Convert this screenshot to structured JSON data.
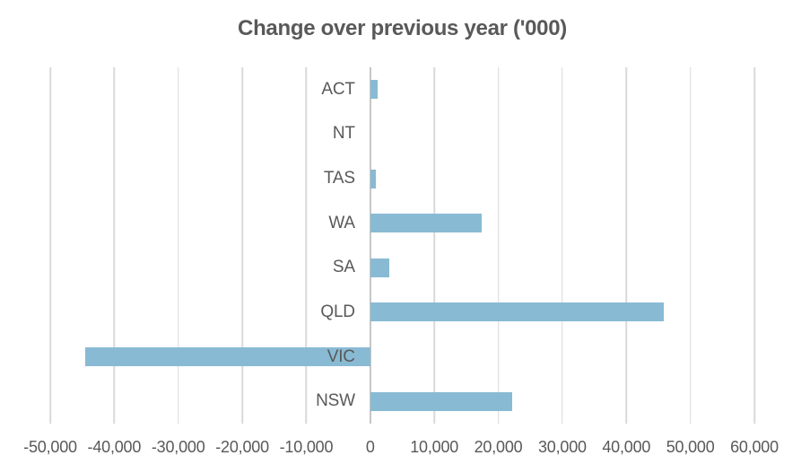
{
  "chart_data": {
    "type": "bar",
    "orientation": "horizontal",
    "title": "Change over previous year ('000)",
    "xlabel": "",
    "ylabel": "",
    "xlim": [
      -50000,
      60000
    ],
    "grid": true,
    "gridlines": "vertical",
    "legend": "none",
    "categories_top_to_bottom": [
      "ACT",
      "NT",
      "TAS",
      "WA",
      "SA",
      "QLD",
      "VIC",
      "NSW"
    ],
    "rows": [
      {
        "label": "ACT",
        "value": 1100
      },
      {
        "label": "NT",
        "value": 0
      },
      {
        "label": "TAS",
        "value": 900
      },
      {
        "label": "WA",
        "value": 17400
      },
      {
        "label": "SA",
        "value": 2900
      },
      {
        "label": "QLD",
        "value": 45900
      },
      {
        "label": "VIC",
        "value": -44500
      },
      {
        "label": "NSW",
        "value": 22100
      }
    ],
    "x_ticks": [
      {
        "value": -50000,
        "label": "-50,000"
      },
      {
        "value": -40000,
        "label": "-40,000"
      },
      {
        "value": -30000,
        "label": "-30,000"
      },
      {
        "value": -20000,
        "label": "-20,000"
      },
      {
        "value": -10000,
        "label": "-10,000"
      },
      {
        "value": 0,
        "label": "0"
      },
      {
        "value": 10000,
        "label": "10,000"
      },
      {
        "value": 20000,
        "label": "20,000"
      },
      {
        "value": 30000,
        "label": "30,000"
      },
      {
        "value": 40000,
        "label": "40,000"
      },
      {
        "value": 50000,
        "label": "50,000"
      },
      {
        "value": 60000,
        "label": "60,000"
      }
    ],
    "colors": {
      "bar": "#89BAD4",
      "text": "#595959",
      "gridline": "#D9D9D9",
      "zero_axis": "#C6C6C6",
      "background": "#FFFFFF"
    }
  }
}
